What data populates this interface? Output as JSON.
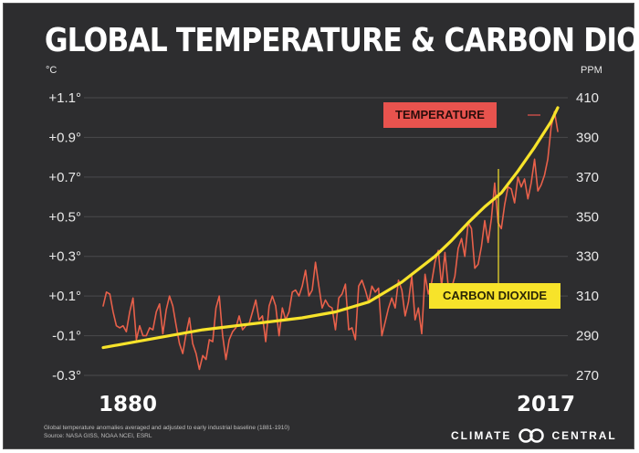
{
  "title": "GLOBAL TEMPERATURE & CARBON DIOXIDE",
  "footnote": {
    "line1": "Global temperature anomalies averaged and adjusted to early industrial baseline (1881-1910)",
    "line2": "Source: NASA GISS, NOAA NCEI, ESRL"
  },
  "brand": {
    "left": "CLIMATE",
    "right": "CENTRAL",
    "logo_icon": "linked-rings-icon"
  },
  "colors": {
    "background": "#2d2d2f",
    "temperature": "#e8604a",
    "co2": "#f7e32a",
    "text": "#ffffff"
  },
  "chart_data": {
    "type": "line",
    "title": "GLOBAL TEMPERATURE & CARBON DIOXIDE",
    "x_start_label": "1880",
    "x_end_label": "2017",
    "xlim": [
      1880,
      2017
    ],
    "left_axis": {
      "unit": "°C",
      "ticks": [
        "+1.1°",
        "+0.9°",
        "+0.7°",
        "+0.5°",
        "+0.3°",
        "+0.1°",
        "-0.1°",
        "-0.3°"
      ],
      "tick_values": [
        1.1,
        0.9,
        0.7,
        0.5,
        0.3,
        0.1,
        -0.1,
        -0.3
      ],
      "ylim": [
        -0.3,
        1.1
      ]
    },
    "right_axis": {
      "unit": "PPM",
      "ticks": [
        "410",
        "390",
        "370",
        "350",
        "330",
        "310",
        "290",
        "270"
      ],
      "tick_values": [
        410,
        390,
        370,
        350,
        330,
        310,
        290,
        270
      ],
      "ylim": [
        270,
        410
      ]
    },
    "grid": true,
    "series": [
      {
        "name": "TEMPERATURE",
        "axis": "left",
        "x": [
          1880,
          1881,
          1882,
          1883,
          1884,
          1885,
          1886,
          1887,
          1888,
          1889,
          1890,
          1891,
          1892,
          1893,
          1894,
          1895,
          1896,
          1897,
          1898,
          1899,
          1900,
          1901,
          1902,
          1903,
          1904,
          1905,
          1906,
          1907,
          1908,
          1909,
          1910,
          1911,
          1912,
          1913,
          1914,
          1915,
          1916,
          1917,
          1918,
          1919,
          1920,
          1921,
          1922,
          1923,
          1924,
          1925,
          1926,
          1927,
          1928,
          1929,
          1930,
          1931,
          1932,
          1933,
          1934,
          1935,
          1936,
          1937,
          1938,
          1939,
          1940,
          1941,
          1942,
          1943,
          1944,
          1945,
          1946,
          1947,
          1948,
          1949,
          1950,
          1951,
          1952,
          1953,
          1954,
          1955,
          1956,
          1957,
          1958,
          1959,
          1960,
          1961,
          1962,
          1963,
          1964,
          1965,
          1966,
          1967,
          1968,
          1969,
          1970,
          1971,
          1972,
          1973,
          1974,
          1975,
          1976,
          1977,
          1978,
          1979,
          1980,
          1981,
          1982,
          1983,
          1984,
          1985,
          1986,
          1987,
          1988,
          1989,
          1990,
          1991,
          1992,
          1993,
          1994,
          1995,
          1996,
          1997,
          1998,
          1999,
          2000,
          2001,
          2002,
          2003,
          2004,
          2005,
          2006,
          2007,
          2008,
          2009,
          2010,
          2011,
          2012,
          2013,
          2014,
          2015,
          2016,
          2017
        ],
        "values": [
          0.05,
          0.12,
          0.11,
          0.02,
          -0.05,
          -0.06,
          -0.05,
          -0.08,
          0.02,
          0.09,
          -0.12,
          -0.05,
          -0.1,
          -0.1,
          -0.06,
          -0.07,
          0.02,
          0.06,
          -0.09,
          0.03,
          0.1,
          0.05,
          -0.05,
          -0.14,
          -0.19,
          -0.09,
          -0.01,
          -0.14,
          -0.19,
          -0.27,
          -0.2,
          -0.22,
          -0.12,
          -0.13,
          0.04,
          0.1,
          -0.1,
          -0.22,
          -0.12,
          -0.08,
          -0.06,
          0.0,
          -0.07,
          -0.05,
          -0.04,
          0.02,
          0.08,
          -0.02,
          0.0,
          -0.13,
          0.05,
          0.1,
          0.05,
          -0.1,
          0.04,
          -0.02,
          0.02,
          0.12,
          0.13,
          0.1,
          0.15,
          0.23,
          0.1,
          0.13,
          0.27,
          0.15,
          0.04,
          0.08,
          0.05,
          0.04,
          -0.07,
          0.09,
          0.11,
          0.16,
          -0.07,
          -0.06,
          -0.12,
          0.15,
          0.18,
          0.13,
          0.07,
          0.15,
          0.12,
          0.14,
          -0.1,
          -0.03,
          0.04,
          0.09,
          0.04,
          0.18,
          0.13,
          0.0,
          0.07,
          0.2,
          -0.02,
          0.04,
          -0.09,
          0.21,
          0.11,
          0.17,
          0.27,
          0.33,
          0.15,
          0.32,
          0.15,
          0.14,
          0.2,
          0.34,
          0.39,
          0.3,
          0.47,
          0.44,
          0.24,
          0.26,
          0.35,
          0.48,
          0.37,
          0.49,
          0.67,
          0.47,
          0.44,
          0.56,
          0.65,
          0.64,
          0.57,
          0.7,
          0.65,
          0.69,
          0.59,
          0.67,
          0.79,
          0.63,
          0.66,
          0.71,
          0.79,
          0.95,
          1.03,
          0.93
        ],
        "color": "#e8604a"
      },
      {
        "name": "CARBON DIOXIDE",
        "axis": "right",
        "x": [
          1880,
          1890,
          1900,
          1910,
          1920,
          1930,
          1940,
          1950,
          1960,
          1970,
          1980,
          1985,
          1990,
          1995,
          2000,
          2005,
          2010,
          2015,
          2017
        ],
        "values": [
          284,
          287,
          290,
          293,
          295,
          297,
          299,
          302,
          307,
          317,
          330,
          338,
          347,
          355,
          362,
          373,
          385,
          398,
          405
        ],
        "color": "#f7e32a"
      }
    ],
    "annotations": [
      "TEMPERATURE",
      "CARBON DIOXIDE"
    ]
  }
}
